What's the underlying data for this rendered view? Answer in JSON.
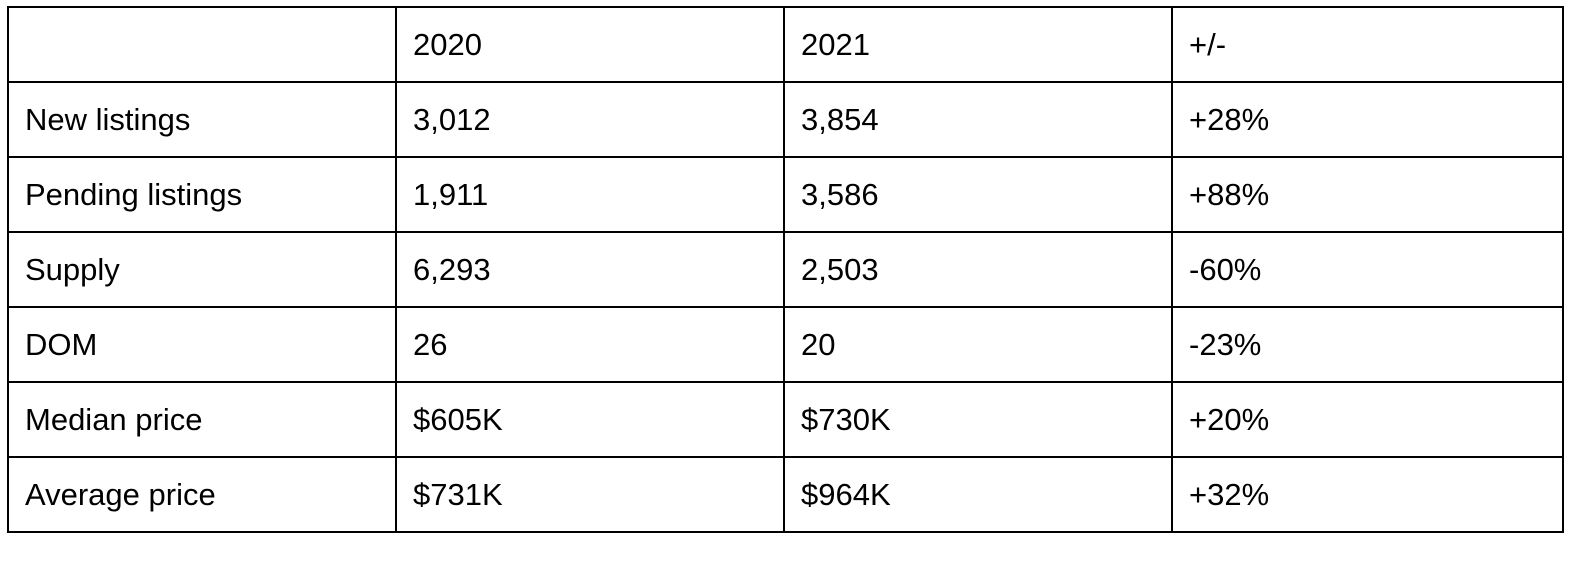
{
  "table": {
    "header": [
      "",
      "2020",
      "2021",
      "+/-"
    ],
    "rows": [
      [
        "New listings",
        "3,012",
        "3,854",
        "+28%"
      ],
      [
        "Pending listings",
        "1,911",
        "3,586",
        "+88%"
      ],
      [
        "Supply",
        "6,293",
        "2,503",
        "-60%"
      ],
      [
        "DOM",
        "26",
        "20",
        "-23%"
      ],
      [
        "Median price",
        "$605K",
        "$730K",
        "+20%"
      ],
      [
        "Average price",
        "$731K",
        "$964K",
        "+32%"
      ]
    ]
  }
}
